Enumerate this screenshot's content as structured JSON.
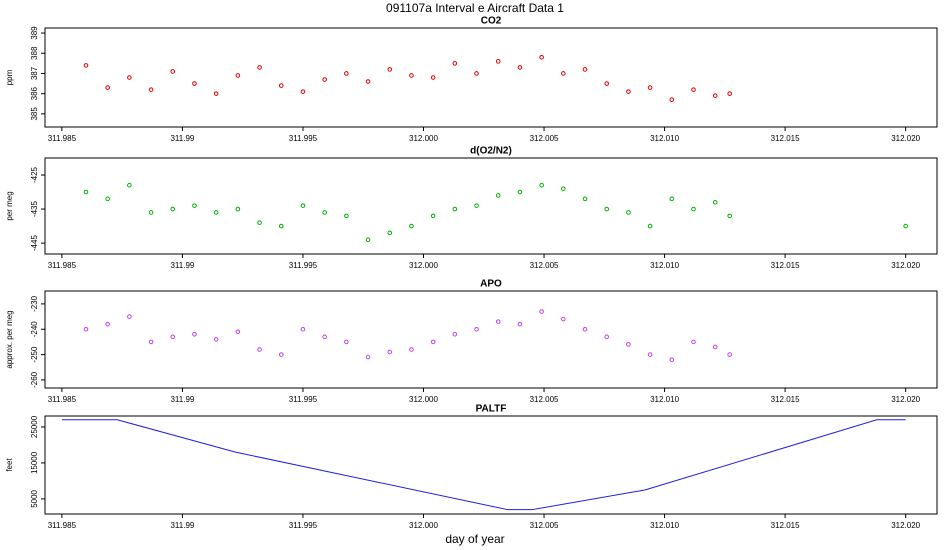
{
  "title": "091107a   Interval e Aircraft Data 1",
  "xlabel": "day of year",
  "chart_data": [
    {
      "type": "scatter",
      "title": "CO2",
      "ylabel": "ppm",
      "color": "#e00000",
      "x": [
        311.986,
        311.9869,
        311.9878,
        311.9887,
        311.9896,
        311.9905,
        311.9914,
        311.9923,
        311.9932,
        311.9941,
        311.995,
        311.9959,
        311.9968,
        311.9977,
        311.9986,
        311.9995,
        312.0004,
        312.0013,
        312.0022,
        312.0031,
        312.004,
        312.0049,
        312.0058,
        312.0067,
        312.0076,
        312.0085,
        312.0094,
        312.0103,
        312.0112,
        312.0121,
        312.0127
      ],
      "values": [
        387.4,
        386.3,
        386.8,
        386.2,
        387.1,
        386.5,
        386.0,
        386.9,
        387.3,
        386.4,
        386.1,
        386.7,
        387.0,
        386.6,
        387.2,
        386.9,
        386.8,
        387.5,
        387.0,
        387.6,
        387.3,
        387.8,
        387.0,
        387.2,
        386.5,
        386.1,
        386.3,
        385.7,
        386.2,
        385.9,
        386.0
      ],
      "xlim": [
        311.9843,
        312.0213
      ],
      "ylim": [
        384.35,
        389.25
      ],
      "xticks": [
        311.985,
        311.99,
        311.995,
        {
          "value": 312.0,
          "label": "312.000"
        },
        312.005,
        {
          "value": 312.01,
          "label": "312.010"
        },
        312.015,
        {
          "value": 312.02,
          "label": "312.020"
        }
      ],
      "xtick_labels": [
        "311.985",
        "311.990",
        "311.995",
        "312.000",
        "312.005",
        "312.010",
        "312.015",
        "312.020"
      ],
      "yticks": [
        385,
        386,
        387,
        388,
        389
      ]
    },
    {
      "type": "scatter",
      "title": "d(O2/N2)",
      "ylabel": "per meg",
      "color": "#00b000",
      "x": [
        311.986,
        311.9869,
        311.9878,
        311.9887,
        311.9896,
        311.9905,
        311.9914,
        311.9923,
        311.9932,
        311.9941,
        311.995,
        311.9959,
        311.9968,
        311.9977,
        311.9986,
        311.9995,
        312.0004,
        312.0013,
        312.0022,
        312.0031,
        312.004,
        312.0049,
        312.0058,
        312.0067,
        312.0076,
        312.0085,
        312.0094,
        312.0103,
        312.0112,
        312.0121,
        312.0127,
        312.02
      ],
      "values": [
        -430,
        -432,
        -428,
        -436,
        -435,
        -434,
        -436,
        -435,
        -439,
        -440,
        -434,
        -436,
        -437,
        -444,
        -442,
        -440,
        -437,
        -435,
        -434,
        -431,
        -430,
        -428,
        -429,
        -432,
        -435,
        -436,
        -440,
        -432,
        -435,
        -433,
        -437,
        -440
      ],
      "xlim": [
        311.9843,
        312.0213
      ],
      "ylim": [
        -448.2,
        -420
      ],
      "xticks": [
        311.985,
        311.99,
        311.995,
        {
          "value": 312.0,
          "label": "312.000"
        },
        312.005,
        {
          "value": 312.01,
          "label": "312.010"
        },
        312.015,
        {
          "value": 312.02,
          "label": "312.020"
        }
      ],
      "yticks": [
        -445,
        -435,
        -425
      ]
    },
    {
      "type": "scatter",
      "title": "APO",
      "ylabel": "approx. per meg",
      "color": "#c040f0",
      "x": [
        311.986,
        311.9869,
        311.9878,
        311.9887,
        311.9896,
        311.9905,
        311.9914,
        311.9923,
        311.9932,
        311.9941,
        311.995,
        311.9959,
        311.9968,
        311.9977,
        311.9986,
        311.9995,
        312.0004,
        312.0013,
        312.0022,
        312.0031,
        312.004,
        312.0049,
        312.0058,
        312.0067,
        312.0076,
        312.0085,
        312.0094,
        312.0103,
        312.0112,
        312.0121,
        312.0127
      ],
      "values": [
        -240,
        -238,
        -235,
        -245,
        -243,
        -242,
        -244,
        -241,
        -248,
        -250,
        -240,
        -243,
        -245,
        -251,
        -249,
        -248,
        -245,
        -242,
        -240,
        -237,
        -238,
        -233,
        -236,
        -240,
        -243,
        -246,
        -250,
        -252,
        -245,
        -247,
        -250
      ],
      "xlim": [
        311.9843,
        312.0213
      ],
      "ylim": [
        -263.2,
        -224.9
      ],
      "xticks": [
        311.985,
        311.99,
        311.995,
        {
          "value": 312.0,
          "label": "312.000"
        },
        312.005,
        {
          "value": 312.01,
          "label": "312.010"
        },
        312.015,
        {
          "value": 312.02,
          "label": "312.020"
        }
      ],
      "yticks": [
        -260,
        -250,
        -240,
        -230
      ]
    },
    {
      "type": "line",
      "title": "PALTF",
      "ylabel": "feet",
      "color": "#2020e0",
      "x": [
        311.985,
        311.9873,
        311.9922,
        312.0035,
        312.0045,
        312.0092,
        312.0188,
        312.02
      ],
      "values": [
        27000,
        27000,
        18000,
        2000,
        2000,
        7500,
        27000,
        27000
      ],
      "xlim": [
        311.9843,
        312.0213
      ],
      "ylim": [
        800,
        28050
      ],
      "xticks": [
        311.985,
        311.99,
        311.995,
        {
          "value": 312.0,
          "label": "312.000"
        },
        312.005,
        {
          "value": 312.01,
          "label": "312.010"
        },
        312.015,
        {
          "value": 312.02,
          "label": "312.020"
        }
      ],
      "yticks": [
        5000,
        15000,
        25000
      ]
    }
  ]
}
